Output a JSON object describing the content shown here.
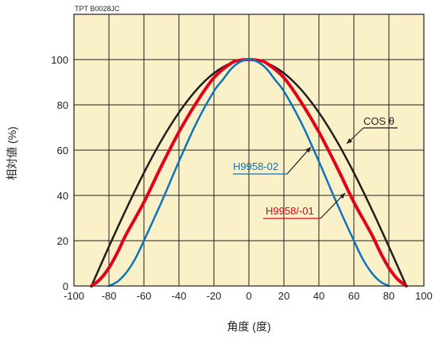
{
  "chart_data": {
    "type": "line",
    "code": "TPT B0028JC",
    "xlabel": "角度 (度)",
    "ylabel": "相対値 (%)",
    "xlim": [
      -100,
      100
    ],
    "ylim": [
      0,
      120
    ],
    "xticks": [
      "-100",
      "-80",
      "-60",
      "-40",
      "-20",
      "0",
      "20",
      "40",
      "60",
      "80",
      "100"
    ],
    "yticks": [
      "0",
      "20",
      "40",
      "60",
      "80",
      "100"
    ],
    "grid": true,
    "colors": {
      "background": "#fbf1c9",
      "grid": "#231f20"
    },
    "series": [
      {
        "name": "COS θ",
        "color": "#231f20",
        "x": [
          -90,
          -80,
          -70,
          -60,
          -50,
          -40,
          -30,
          -20,
          -10,
          0,
          10,
          20,
          30,
          40,
          50,
          60,
          70,
          80,
          90
        ],
        "values": [
          0,
          17.4,
          34.2,
          50,
          64.3,
          76.6,
          86.6,
          94,
          98.5,
          100,
          98.5,
          94,
          86.6,
          76.6,
          64.3,
          50,
          34.2,
          17.4,
          0
        ]
      },
      {
        "name": "H9958/-01",
        "color": "#e3001b",
        "x": [
          -90,
          -85,
          -80,
          -75,
          -70,
          -60,
          -50,
          -40,
          -30,
          -20,
          -10,
          -5,
          0,
          5,
          10,
          20,
          30,
          40,
          50,
          60,
          70,
          75,
          80,
          85,
          90
        ],
        "values": [
          0,
          3,
          8,
          15,
          23,
          37,
          53,
          68,
          81,
          92,
          98.5,
          99.7,
          100,
          99.7,
          98.5,
          92,
          81,
          68,
          53,
          37,
          23,
          15,
          8,
          3,
          0
        ]
      },
      {
        "name": "H9958-02",
        "color": "#0a74bd",
        "x": [
          -80,
          -75,
          -70,
          -65,
          -60,
          -50,
          -40,
          -30,
          -20,
          -15,
          -10,
          -5,
          0,
          5,
          10,
          15,
          20,
          30,
          40,
          50,
          60,
          65,
          70,
          75,
          80
        ],
        "values": [
          0,
          2,
          6,
          12,
          20,
          37,
          55,
          72,
          86,
          91,
          96,
          99,
          100,
          99,
          96,
          91,
          86,
          72,
          55,
          37,
          20,
          12,
          6,
          2,
          0
        ]
      }
    ]
  }
}
